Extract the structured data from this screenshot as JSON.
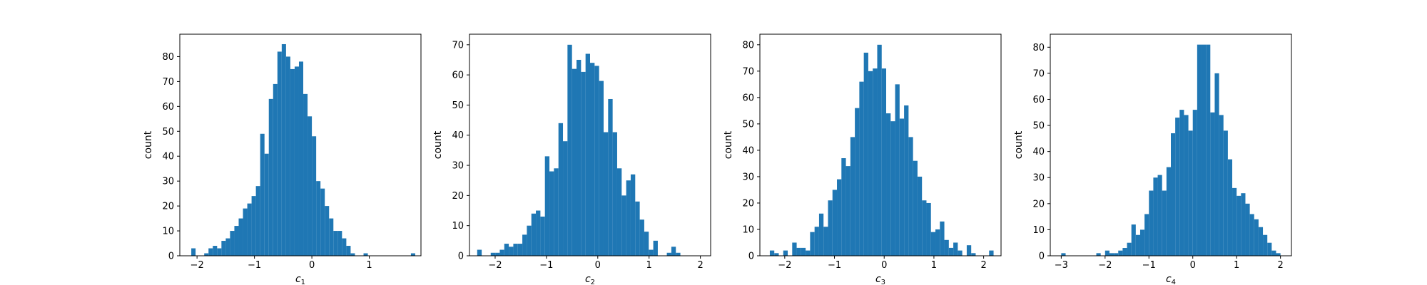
{
  "style": {
    "bar_color": "#1f77b4",
    "axis_color": "#000000",
    "background": "#ffffff"
  },
  "chart_data": [
    {
      "type": "bar",
      "title": "",
      "xlabel_base": "c",
      "xlabel_sub": "1",
      "ylabel": "count",
      "xlim": [
        -2.3,
        1.9
      ],
      "ylim": [
        0,
        89
      ],
      "xticks": [
        -2,
        -1,
        0,
        1
      ],
      "yticks": [
        0,
        10,
        20,
        30,
        40,
        50,
        60,
        70,
        80
      ],
      "bin_start": -2.1,
      "bin_width": 0.075,
      "values": [
        3,
        0,
        0,
        1,
        3,
        4,
        3,
        6,
        7,
        10,
        12,
        15,
        19,
        21,
        24,
        28,
        49,
        41,
        63,
        69,
        82,
        85,
        80,
        75,
        76,
        78,
        65,
        56,
        48,
        30,
        27,
        20,
        15,
        10,
        10,
        7,
        4,
        1,
        0,
        0,
        1,
        0,
        0,
        0,
        0,
        0,
        0,
        0,
        0,
        0,
        0,
        1
      ]
    },
    {
      "type": "bar",
      "title": "",
      "xlabel_base": "c",
      "xlabel_sub": "2",
      "ylabel": "count",
      "xlim": [
        -2.5,
        2.2
      ],
      "ylim": [
        0,
        73.5
      ],
      "xticks": [
        -2,
        -1,
        0,
        1,
        2
      ],
      "yticks": [
        0,
        10,
        20,
        30,
        40,
        50,
        60,
        70
      ],
      "bin_start": -2.35,
      "bin_width": 0.088,
      "values": [
        2,
        0,
        0,
        1,
        1,
        2,
        4,
        3,
        4,
        4,
        7,
        10,
        14,
        15,
        13,
        33,
        28,
        29,
        44,
        38,
        70,
        62,
        65,
        61,
        67,
        64,
        63,
        58,
        41,
        52,
        41,
        29,
        20,
        25,
        27,
        18,
        12,
        8,
        2,
        5,
        0,
        0,
        1,
        3,
        1
      ]
    },
    {
      "type": "bar",
      "title": "",
      "xlabel_base": "c",
      "xlabel_sub": "3",
      "ylabel": "count",
      "xlim": [
        -2.5,
        2.35
      ],
      "ylim": [
        0,
        84
      ],
      "xticks": [
        -2,
        -1,
        0,
        1,
        2
      ],
      "yticks": [
        0,
        10,
        20,
        30,
        40,
        50,
        60,
        70,
        80
      ],
      "bin_start": -2.3,
      "bin_width": 0.09,
      "values": [
        2,
        1,
        0,
        2,
        0,
        5,
        3,
        3,
        2,
        9,
        11,
        16,
        11,
        21,
        25,
        29,
        37,
        34,
        45,
        56,
        66,
        77,
        70,
        71,
        80,
        71,
        54,
        51,
        65,
        52,
        57,
        45,
        36,
        30,
        21,
        20,
        9,
        10,
        13,
        6,
        3,
        5,
        2,
        0,
        4,
        1,
        0,
        0,
        0,
        2
      ]
    },
    {
      "type": "bar",
      "title": "",
      "xlabel_base": "c",
      "xlabel_sub": "4",
      "ylabel": "count",
      "xlim": [
        -3.25,
        2.25
      ],
      "ylim": [
        0,
        85
      ],
      "xticks": [
        -3,
        -2,
        -1,
        0,
        1,
        2
      ],
      "yticks": [
        0,
        10,
        20,
        30,
        40,
        50,
        60,
        70,
        80
      ],
      "bin_start": -3.0,
      "bin_width": 0.1,
      "values": [
        1,
        0,
        0,
        0,
        0,
        0,
        0,
        0,
        1,
        0,
        2,
        1,
        1,
        2,
        3,
        5,
        12,
        8,
        10,
        16,
        25,
        30,
        31,
        25,
        34,
        47,
        53,
        56,
        54,
        48,
        56,
        81,
        81,
        81,
        55,
        70,
        54,
        48,
        37,
        26,
        23,
        24,
        20,
        16,
        14,
        11,
        8,
        5,
        2,
        1
      ]
    }
  ]
}
